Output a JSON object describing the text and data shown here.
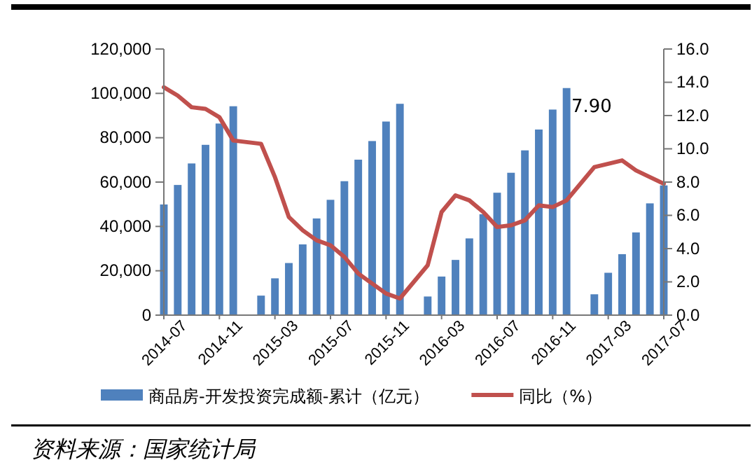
{
  "chart_data": {
    "type": "bar",
    "categories": [
      "2014-07",
      null,
      null,
      null,
      "2014-11",
      null,
      null,
      null,
      "2015-03",
      null,
      null,
      null,
      "2015-07",
      null,
      null,
      null,
      "2015-11",
      null,
      null,
      null,
      "2016-03",
      null,
      null,
      null,
      "2016-07",
      null,
      null,
      null,
      "2016-11",
      null,
      null,
      null,
      "2017-03",
      null,
      null,
      null,
      "2017-07"
    ],
    "series": [
      {
        "name": "商品房-开发投资完成额-累计（亿元）",
        "color": "#4f81bd",
        "values": [
          49900,
          58700,
          68400,
          76800,
          86400,
          94200,
          null,
          8800,
          16600,
          23500,
          31900,
          43600,
          52000,
          60400,
          70100,
          78500,
          87300,
          95300,
          null,
          8400,
          17400,
          24900,
          34600,
          45500,
          55200,
          64200,
          74300,
          83700,
          92700,
          102400,
          null,
          9400,
          19100,
          27500,
          37300,
          50400,
          58500
        ]
      },
      {
        "name": "同比（%）",
        "type": "line",
        "axis": "y2",
        "color": "#c0504d",
        "values": [
          13.7,
          13.2,
          12.5,
          12.4,
          11.9,
          10.5,
          null,
          10.3,
          8.3,
          5.9,
          5.1,
          4.5,
          4.2,
          3.5,
          2.5,
          1.9,
          1.3,
          1.0,
          null,
          3.0,
          6.2,
          7.2,
          6.9,
          6.2,
          5.3,
          5.4,
          5.7,
          6.6,
          6.5,
          6.9,
          null,
          8.9,
          9.1,
          9.3,
          8.7,
          8.3,
          7.9
        ]
      }
    ],
    "ylim": [
      0,
      120000
    ],
    "yticks": [
      0,
      {
        "value": 20000,
        "label": "20,000"
      },
      {
        "value": 40000,
        "label": "40,000"
      },
      {
        "value": 60000,
        "label": "60,000"
      },
      {
        "value": 80000,
        "label": "80,000"
      },
      {
        "value": 100000,
        "label": "100,000"
      },
      {
        "value": 120000,
        "label": "120,000"
      }
    ],
    "y2lim": [
      0,
      16
    ],
    "y2ticks": [
      {
        "value": 0,
        "label": "0.0"
      },
      {
        "value": 2,
        "label": "2.0"
      },
      {
        "value": 4,
        "label": "4.0"
      },
      {
        "value": 6,
        "label": "6.0"
      },
      {
        "value": 8,
        "label": "8.0"
      },
      {
        "value": 10,
        "label": "10.0"
      },
      {
        "value": 12,
        "label": "12.0"
      },
      {
        "value": 14,
        "label": "14.0"
      },
      {
        "value": 16,
        "label": "16.0"
      }
    ],
    "legend": "bottom",
    "grid": false,
    "annotations": [
      "7.90",
      "资料来源：国家统计局"
    ]
  }
}
